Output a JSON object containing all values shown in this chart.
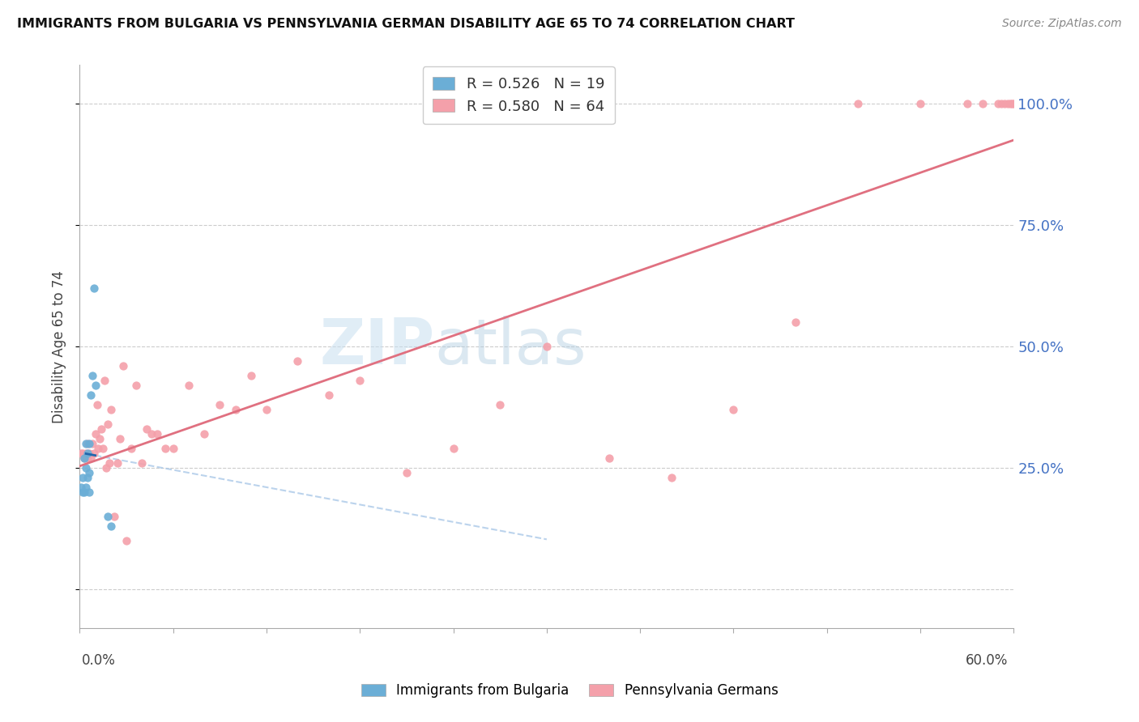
{
  "title": "IMMIGRANTS FROM BULGARIA VS PENNSYLVANIA GERMAN DISABILITY AGE 65 TO 74 CORRELATION CHART",
  "source": "Source: ZipAtlas.com",
  "ylabel": "Disability Age 65 to 74",
  "series1_label": "Immigrants from Bulgaria",
  "series1_color": "#6baed6",
  "series1_line_color": "#2166ac",
  "series2_label": "Pennsylvania Germans",
  "series2_color": "#f4a0aa",
  "series2_line_color": "#e07080",
  "series1_dash_color": "#aac8e8",
  "legend_line1": "R = 0.526   N = 19",
  "legend_line2": "R = 0.580   N = 64",
  "watermark_zip": "ZIP",
  "watermark_atlas": "atlas",
  "xlim": [
    0.0,
    0.6
  ],
  "ylim": [
    -0.08,
    1.08
  ],
  "yticks": [
    0.0,
    0.25,
    0.5,
    0.75,
    1.0
  ],
  "ytick_labels": [
    "",
    "25.0%",
    "50.0%",
    "75.0%",
    "100.0%"
  ],
  "bulgaria_x": [
    0.001,
    0.002,
    0.002,
    0.003,
    0.003,
    0.004,
    0.004,
    0.004,
    0.005,
    0.005,
    0.006,
    0.006,
    0.006,
    0.007,
    0.008,
    0.009,
    0.01,
    0.018,
    0.02
  ],
  "bulgaria_y": [
    0.21,
    0.2,
    0.23,
    0.2,
    0.27,
    0.21,
    0.25,
    0.3,
    0.23,
    0.28,
    0.2,
    0.24,
    0.3,
    0.4,
    0.44,
    0.62,
    0.42,
    0.15,
    0.13
  ],
  "pagerman_x": [
    0.001,
    0.002,
    0.003,
    0.004,
    0.005,
    0.005,
    0.006,
    0.007,
    0.008,
    0.009,
    0.01,
    0.011,
    0.012,
    0.013,
    0.014,
    0.015,
    0.016,
    0.017,
    0.018,
    0.019,
    0.02,
    0.022,
    0.024,
    0.026,
    0.028,
    0.03,
    0.033,
    0.036,
    0.04,
    0.043,
    0.046,
    0.05,
    0.055,
    0.06,
    0.07,
    0.08,
    0.09,
    0.1,
    0.11,
    0.12,
    0.14,
    0.16,
    0.18,
    0.21,
    0.24,
    0.27,
    0.3,
    0.34,
    0.38,
    0.42,
    0.46,
    0.5,
    0.54,
    0.57,
    0.58,
    0.59,
    0.592,
    0.594,
    0.596,
    0.598,
    0.599,
    0.6,
    0.601,
    0.602
  ],
  "pagerman_y": [
    0.28,
    0.28,
    0.27,
    0.28,
    0.3,
    0.27,
    0.28,
    0.27,
    0.3,
    0.28,
    0.32,
    0.38,
    0.29,
    0.31,
    0.33,
    0.29,
    0.43,
    0.25,
    0.34,
    0.26,
    0.37,
    0.15,
    0.26,
    0.31,
    0.46,
    0.1,
    0.29,
    0.42,
    0.26,
    0.33,
    0.32,
    0.32,
    0.29,
    0.29,
    0.42,
    0.32,
    0.38,
    0.37,
    0.44,
    0.37,
    0.47,
    0.4,
    0.43,
    0.24,
    0.29,
    0.38,
    0.5,
    0.27,
    0.23,
    0.37,
    0.55,
    1.0,
    1.0,
    1.0,
    1.0,
    1.0,
    1.0,
    1.0,
    1.0,
    1.0,
    1.0,
    1.0,
    1.0,
    1.0
  ]
}
